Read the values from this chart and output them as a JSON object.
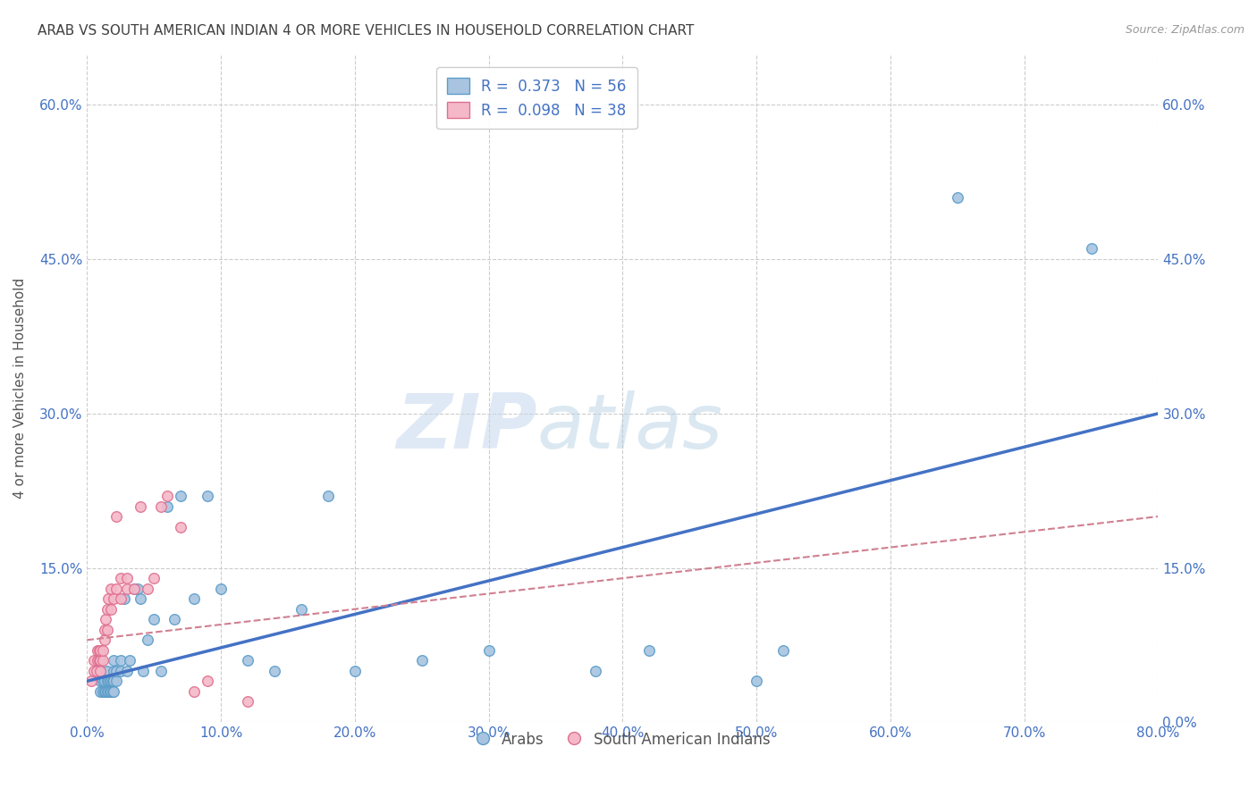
{
  "title": "ARAB VS SOUTH AMERICAN INDIAN 4 OR MORE VEHICLES IN HOUSEHOLD CORRELATION CHART",
  "source": "Source: ZipAtlas.com",
  "xlabel_ticks": [
    "0.0%",
    "10.0%",
    "20.0%",
    "30.0%",
    "40.0%",
    "50.0%",
    "60.0%",
    "70.0%",
    "80.0%"
  ],
  "ylabel": "4 or more Vehicles in Household",
  "ylabel_ticks_left": [
    "",
    "15.0%",
    "30.0%",
    "45.0%",
    "60.0%"
  ],
  "ylabel_ticks_right": [
    "0.0%",
    "15.0%",
    "30.0%",
    "45.0%",
    "60.0%"
  ],
  "xlim": [
    0,
    0.8
  ],
  "ylim": [
    0.0,
    0.65
  ],
  "arab_color": "#a8c4e0",
  "arab_edge_color": "#5b9dc9",
  "sa_color": "#f4b8c8",
  "sa_edge_color": "#e07090",
  "arab_R": "0.373",
  "arab_N": "56",
  "sa_R": "0.098",
  "sa_N": "38",
  "blue_line_color": "#4472c4",
  "pink_line_color": "#d08090",
  "legend_label_arab": "Arabs",
  "legend_label_sa": "South American Indians",
  "watermark_zip": "ZIP",
  "watermark_atlas": "atlas",
  "arab_x": [
    0.01,
    0.01,
    0.01,
    0.012,
    0.012,
    0.013,
    0.013,
    0.014,
    0.015,
    0.015,
    0.015,
    0.016,
    0.016,
    0.017,
    0.017,
    0.018,
    0.018,
    0.019,
    0.019,
    0.02,
    0.02,
    0.02,
    0.02,
    0.022,
    0.022,
    0.025,
    0.025,
    0.028,
    0.03,
    0.032,
    0.035,
    0.038,
    0.04,
    0.042,
    0.045,
    0.05,
    0.055,
    0.06,
    0.065,
    0.07,
    0.08,
    0.09,
    0.1,
    0.12,
    0.14,
    0.16,
    0.18,
    0.2,
    0.25,
    0.3,
    0.38,
    0.42,
    0.5,
    0.52,
    0.65,
    0.75
  ],
  "arab_y": [
    0.03,
    0.04,
    0.05,
    0.03,
    0.04,
    0.03,
    0.04,
    0.03,
    0.03,
    0.04,
    0.05,
    0.03,
    0.04,
    0.03,
    0.04,
    0.03,
    0.04,
    0.03,
    0.04,
    0.03,
    0.04,
    0.05,
    0.06,
    0.04,
    0.05,
    0.05,
    0.06,
    0.12,
    0.05,
    0.06,
    0.13,
    0.13,
    0.12,
    0.05,
    0.08,
    0.1,
    0.05,
    0.21,
    0.1,
    0.22,
    0.12,
    0.22,
    0.13,
    0.06,
    0.05,
    0.11,
    0.22,
    0.05,
    0.06,
    0.07,
    0.05,
    0.07,
    0.04,
    0.07,
    0.51,
    0.46
  ],
  "sa_x": [
    0.003,
    0.005,
    0.005,
    0.007,
    0.008,
    0.008,
    0.009,
    0.009,
    0.01,
    0.01,
    0.01,
    0.012,
    0.012,
    0.013,
    0.013,
    0.014,
    0.015,
    0.015,
    0.016,
    0.018,
    0.018,
    0.02,
    0.022,
    0.022,
    0.025,
    0.025,
    0.03,
    0.03,
    0.035,
    0.04,
    0.045,
    0.05,
    0.055,
    0.06,
    0.07,
    0.08,
    0.09,
    0.12
  ],
  "sa_y": [
    0.04,
    0.05,
    0.06,
    0.05,
    0.06,
    0.07,
    0.06,
    0.07,
    0.05,
    0.06,
    0.07,
    0.06,
    0.07,
    0.08,
    0.09,
    0.1,
    0.09,
    0.11,
    0.12,
    0.11,
    0.13,
    0.12,
    0.13,
    0.2,
    0.12,
    0.14,
    0.13,
    0.14,
    0.13,
    0.21,
    0.13,
    0.14,
    0.21,
    0.22,
    0.19,
    0.03,
    0.04,
    0.02
  ],
  "arab_trend_x": [
    0.0,
    0.8
  ],
  "arab_trend_y": [
    0.04,
    0.3
  ],
  "sa_trend_x": [
    0.0,
    0.8
  ],
  "sa_trend_y": [
    0.08,
    0.2
  ],
  "grid_color": "#cccccc",
  "background_color": "#ffffff",
  "title_color": "#404040",
  "tick_color": "#4472c4"
}
